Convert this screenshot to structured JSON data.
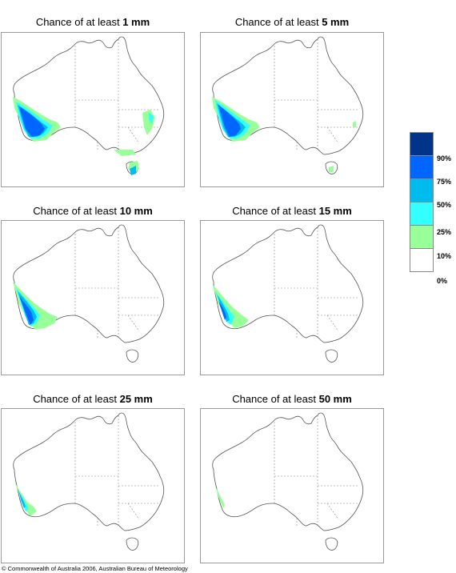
{
  "panels": [
    {
      "prefix": "Chance of at least ",
      "amount": "1 mm"
    },
    {
      "prefix": "Chance of at least ",
      "amount": "5 mm"
    },
    {
      "prefix": "Chance of at least ",
      "amount": "10 mm"
    },
    {
      "prefix": "Chance of at least ",
      "amount": "15 mm"
    },
    {
      "prefix": "Chance of at least ",
      "amount": "25 mm"
    },
    {
      "prefix": "Chance of at least ",
      "amount": "50 mm"
    }
  ],
  "legend": {
    "labels": [
      "90%",
      "75%",
      "50%",
      "25%",
      "10%",
      "0%"
    ],
    "colors": [
      "#00338a",
      "#0066ff",
      "#00bbee",
      "#33ffff",
      "#99ff99",
      "#ffffff"
    ]
  },
  "copyright": "© Commonwealth of Australia 2006, Australian Bureau of Meteorology"
}
